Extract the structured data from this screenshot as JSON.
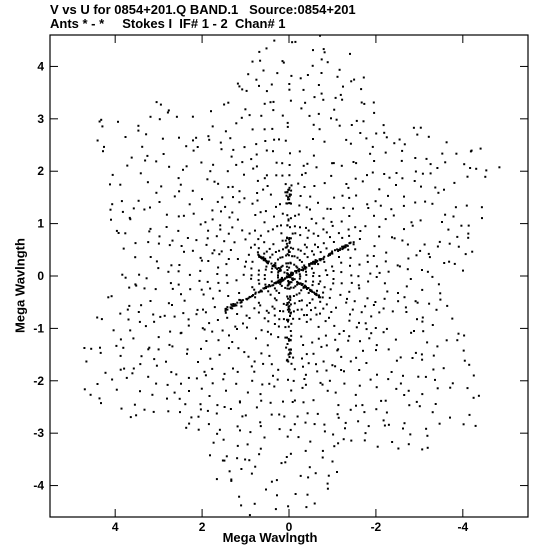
{
  "header": {
    "line1": "V vs U for 0854+201.Q BAND.1   Source:0854+201",
    "line2": "Ants * - *     Stokes I  IF# 1 - 2  Chan# 1"
  },
  "chart_data": {
    "type": "scatter",
    "title": "V vs U for 0854+201.Q BAND.1   Source:0854+201",
    "subtitle": "Ants * - *     Stokes I  IF# 1 - 2  Chan# 1",
    "xlabel": "Mega Wavlngth",
    "ylabel": "Mega Wavlngth",
    "xlim": [
      5.5,
      -5.5
    ],
    "ylim": [
      -4.6,
      4.6
    ],
    "x_ticks": [
      4,
      2,
      0,
      -2,
      -4
    ],
    "y_ticks": [
      4,
      3,
      2,
      1,
      0,
      -1,
      -2,
      -3,
      -4
    ],
    "x_tick_labels": [
      "4",
      "2",
      "0",
      "-2",
      "-4"
    ],
    "y_tick_labels": [
      "4",
      "3",
      "2",
      "1",
      "0",
      "-1",
      "-2",
      "-3",
      "-4"
    ],
    "grid": false,
    "legend": "none",
    "marker_color": "#000000",
    "description_of_points": "uv-coverage tracks: concentric elliptical arcs forming a six-armed star, radii up to about 5.3 Mega wavelengths",
    "series": [
      {
        "values_note": "points generated as arcs at radii 0.25-5.3 along hour-angle tracks",
        "radii": [
          0.25,
          0.4,
          0.55,
          0.7,
          0.85,
          1.0,
          1.2,
          1.4,
          1.6,
          1.8,
          2.0,
          2.2,
          2.45,
          2.7,
          2.95,
          3.2,
          3.45,
          3.7,
          3.95,
          4.2,
          4.5,
          4.8,
          5.1,
          5.3
        ]
      }
    ]
  }
}
